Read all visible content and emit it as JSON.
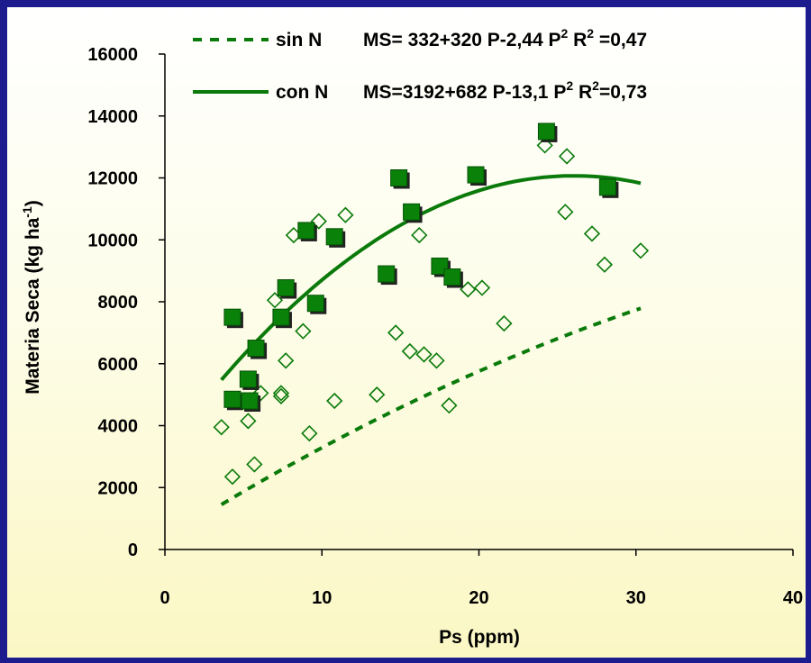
{
  "chart_data": {
    "type": "scatter",
    "xlabel": "Ps (ppm)",
    "ylabel": "Materia Seca (kg ha-1)",
    "ylabel_parts": {
      "main": "Materia Seca (kg ha",
      "sup": "-1",
      "close": ")"
    },
    "xlim": [
      0,
      40
    ],
    "ylim": [
      0,
      16000
    ],
    "x_ticks": [
      0,
      10,
      20,
      30,
      40
    ],
    "y_ticks": [
      0,
      2000,
      4000,
      6000,
      8000,
      10000,
      12000,
      14000,
      16000
    ],
    "grid": false,
    "legend_position": "top",
    "colors": {
      "series": "#0a7a0a",
      "marker_fill": "#0a820a",
      "marker_shadow": "#222222",
      "background": "#1c1c8f"
    },
    "series": [
      {
        "name": "sin N",
        "marker": "open-diamond",
        "line_style": "dashed",
        "equation_parts": {
          "a": "MS= 332+320 P-2,44 P",
          "sup1": "2",
          "b": "  R",
          "sup2": "2",
          "c": " =0,47"
        },
        "points": [
          [
            3.6,
            3950
          ],
          [
            4.3,
            2350
          ],
          [
            5.3,
            4150
          ],
          [
            5.7,
            2750
          ],
          [
            6.1,
            5050
          ],
          [
            7.0,
            8050
          ],
          [
            7.4,
            4950
          ],
          [
            7.4,
            5050
          ],
          [
            7.7,
            6100
          ],
          [
            8.2,
            10150
          ],
          [
            8.8,
            7050
          ],
          [
            9.2,
            3750
          ],
          [
            9.8,
            10600
          ],
          [
            10.8,
            4800
          ],
          [
            11.5,
            10800
          ],
          [
            13.5,
            5000
          ],
          [
            14.7,
            7000
          ],
          [
            15.6,
            6400
          ],
          [
            16.2,
            10150
          ],
          [
            16.5,
            6300
          ],
          [
            17.3,
            6100
          ],
          [
            18.1,
            4650
          ],
          [
            19.3,
            8400
          ],
          [
            20.2,
            8450
          ],
          [
            21.6,
            7300
          ],
          [
            24.2,
            13050
          ],
          [
            25.5,
            10900
          ],
          [
            25.6,
            12700
          ],
          [
            27.2,
            10200
          ],
          [
            28.0,
            9200
          ],
          [
            30.3,
            9650
          ]
        ]
      },
      {
        "name": "con N",
        "marker": "filled-square",
        "line_style": "solid",
        "equation_parts": {
          "a": "MS=3192+682 P-13,1 P",
          "sup1": "2",
          "b": " R",
          "sup2": "2",
          "c": "=0,73"
        },
        "points": [
          [
            4.3,
            7500
          ],
          [
            4.3,
            4850
          ],
          [
            5.3,
            5500
          ],
          [
            5.4,
            4800
          ],
          [
            5.8,
            6500
          ],
          [
            7.4,
            7500
          ],
          [
            7.7,
            8450
          ],
          [
            9.0,
            10300
          ],
          [
            9.6,
            7950
          ],
          [
            10.8,
            10100
          ],
          [
            14.1,
            8900
          ],
          [
            14.9,
            12000
          ],
          [
            15.7,
            10900
          ],
          [
            17.5,
            9150
          ],
          [
            18.3,
            8800
          ],
          [
            19.8,
            12100
          ],
          [
            24.3,
            13500
          ],
          [
            28.2,
            11700
          ]
        ]
      }
    ]
  }
}
